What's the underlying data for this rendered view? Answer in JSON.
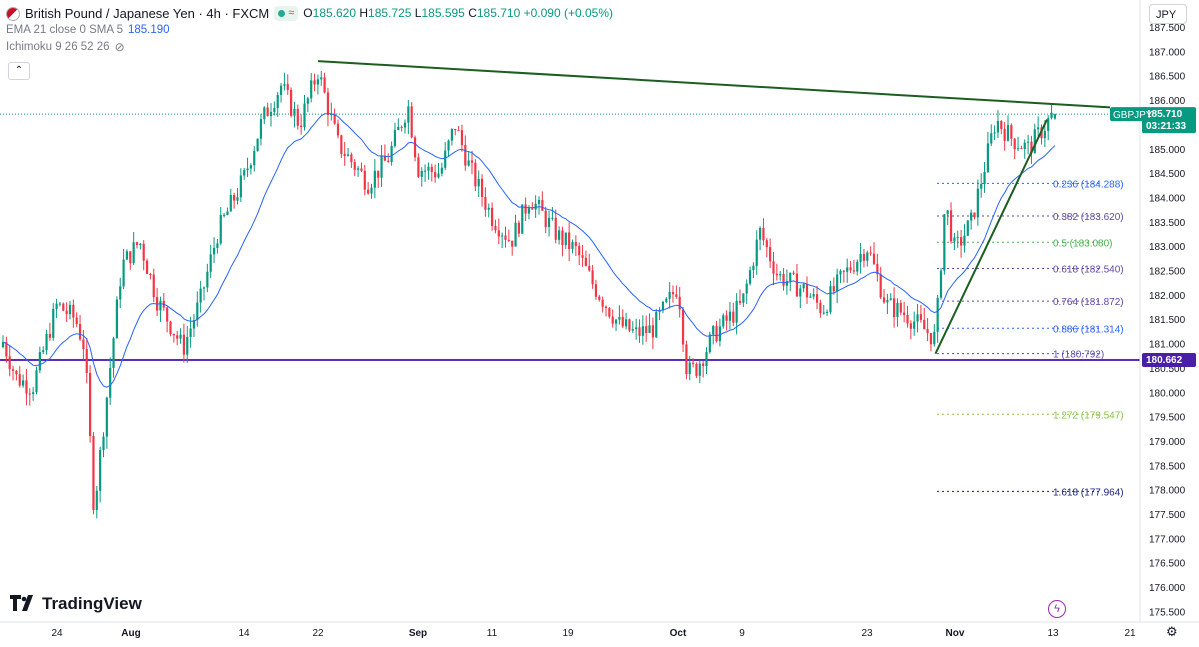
{
  "legend": {
    "title": "British Pound / Japanese Yen · 4h · FXCM",
    "open_label": "O",
    "open": "185.620",
    "high_label": "H",
    "high": "185.725",
    "low_label": "L",
    "low": "185.595",
    "close_label": "C",
    "close": "185.710",
    "change": "+0.090 (+0.05%)",
    "indicator1_name": "EMA 21 close 0 SMA 5",
    "indicator1_value": "185.190",
    "indicator2_name": "Ichimoku 9 26 52 26"
  },
  "currency_button": "JPY",
  "brand": "TradingView",
  "chart_data": {
    "type": "candlestick",
    "symbol": "GBPJPY",
    "ylim": [
      175.25,
      187.8
    ],
    "y_ticks": [
      "175.500",
      "176.000",
      "176.500",
      "177.000",
      "177.500",
      "178.000",
      "178.500",
      "179.000",
      "179.500",
      "180.000",
      "180.500",
      "181.000",
      "181.500",
      "182.000",
      "182.500",
      "183.000",
      "183.500",
      "184.000",
      "184.500",
      "185.000",
      "185.500",
      "186.000",
      "186.500",
      "187.000",
      "187.500"
    ],
    "x_ticks": [
      "24",
      "Aug",
      "14",
      "22",
      "Sep",
      "11",
      "19",
      "Oct",
      "9",
      "23",
      "Nov",
      "13",
      "21"
    ],
    "last_price": "185.710",
    "last_price_countdown": "03:21:33",
    "horizontal_level": "180.662",
    "horizontal_level_value": 180.662,
    "trendline_descending": [
      {
        "x": "Aug 22",
        "y": 186.8
      },
      {
        "x": "Nov 15",
        "y": 185.85
      }
    ],
    "trendline_ascending": [
      {
        "x": "Oct 30",
        "y": 180.792
      },
      {
        "x": "Nov 13",
        "y": 185.6
      }
    ],
    "fibonacci": [
      {
        "ratio": "0.236",
        "value": 184.288,
        "label": "0.236 (184.288)",
        "color": "#2962ff"
      },
      {
        "ratio": "0.382",
        "value": 183.62,
        "label": "0.382 (183.620)",
        "color": "#5d4aa6"
      },
      {
        "ratio": "0.5",
        "value": 183.08,
        "label": "0.5 (183.080)",
        "color": "#4caf50"
      },
      {
        "ratio": "0.618",
        "value": 182.54,
        "label": "0.618 (182.540)",
        "color": "#5d4aa6"
      },
      {
        "ratio": "0.764",
        "value": 181.872,
        "label": "0.764 (181.872)",
        "color": "#5d4aa6"
      },
      {
        "ratio": "0.886",
        "value": 181.314,
        "label": "0.886 (181.314)",
        "color": "#2962ff"
      },
      {
        "ratio": "1",
        "value": 180.792,
        "label": "1 (180.792)",
        "color": "#5d4aa6"
      },
      {
        "ratio": "1.272",
        "value": 179.547,
        "label": "1.272 (179.547)",
        "color": "#8bc34a"
      },
      {
        "ratio": "1.618",
        "value": 177.964,
        "label": "1.618 (177.964)",
        "color": "#1a237e"
      }
    ],
    "price_path": [
      {
        "d": "Jul 17",
        "c": 181.2
      },
      {
        "d": "Jul 19",
        "c": 180.3
      },
      {
        "d": "Jul 21",
        "c": 180.1
      },
      {
        "d": "Jul 24",
        "c": 181.8
      },
      {
        "d": "Jul 26",
        "c": 181.5
      },
      {
        "d": "Jul 27",
        "c": 180.9
      },
      {
        "d": "Jul 28",
        "c": 177.6
      },
      {
        "d": "Jul 31",
        "c": 182.6
      },
      {
        "d": "Aug 2",
        "c": 183.1
      },
      {
        "d": "Aug 4",
        "c": 181.9
      },
      {
        "d": "Aug 7",
        "c": 180.9
      },
      {
        "d": "Aug 9",
        "c": 181.9
      },
      {
        "d": "Aug 11",
        "c": 183.3
      },
      {
        "d": "Aug 14",
        "c": 184.4
      },
      {
        "d": "Aug 16",
        "c": 185.6
      },
      {
        "d": "Aug 18",
        "c": 186.3
      },
      {
        "d": "Aug 20",
        "c": 185.5
      },
      {
        "d": "Aug 22",
        "c": 186.6
      },
      {
        "d": "Aug 24",
        "c": 185.1
      },
      {
        "d": "Aug 27",
        "c": 184.3
      },
      {
        "d": "Aug 29",
        "c": 184.8
      },
      {
        "d": "Aug 31",
        "c": 185.9
      },
      {
        "d": "Sep 1",
        "c": 184.6
      },
      {
        "d": "Sep 4",
        "c": 184.5
      },
      {
        "d": "Sep 6",
        "c": 185.5
      },
      {
        "d": "Sep 8",
        "c": 184.6
      },
      {
        "d": "Sep 11",
        "c": 183.6
      },
      {
        "d": "Sep 13",
        "c": 183.1
      },
      {
        "d": "Sep 15",
        "c": 184.0
      },
      {
        "d": "Sep 18",
        "c": 183.2
      },
      {
        "d": "Sep 20",
        "c": 182.9
      },
      {
        "d": "Sep 22",
        "c": 182.2
      },
      {
        "d": "Sep 25",
        "c": 181.4
      },
      {
        "d": "Sep 27",
        "c": 181.2
      },
      {
        "d": "Sep 29",
        "c": 181.3
      },
      {
        "d": "Oct 2",
        "c": 182.2
      },
      {
        "d": "Oct 3",
        "c": 180.4
      },
      {
        "d": "Oct 4",
        "c": 180.5
      },
      {
        "d": "Oct 6",
        "c": 181.2
      },
      {
        "d": "Oct 9",
        "c": 181.8
      },
      {
        "d": "Oct 11",
        "c": 183.3
      },
      {
        "d": "Oct 13",
        "c": 182.4
      },
      {
        "d": "Oct 16",
        "c": 182.1
      },
      {
        "d": "Oct 18",
        "c": 181.7
      },
      {
        "d": "Oct 20",
        "c": 182.3
      },
      {
        "d": "Oct 23",
        "c": 183.0
      },
      {
        "d": "Oct 25",
        "c": 181.8
      },
      {
        "d": "Oct 27",
        "c": 181.6
      },
      {
        "d": "Oct 30",
        "c": 181.1
      },
      {
        "d": "Oct 31",
        "c": 183.9
      },
      {
        "d": "Nov 1",
        "c": 182.9
      },
      {
        "d": "Nov 3",
        "c": 183.5
      },
      {
        "d": "Nov 6",
        "c": 185.6
      },
      {
        "d": "Nov 8",
        "c": 185.2
      },
      {
        "d": "Nov 10",
        "c": 185.0
      },
      {
        "d": "Nov 13",
        "c": 185.71
      }
    ]
  }
}
